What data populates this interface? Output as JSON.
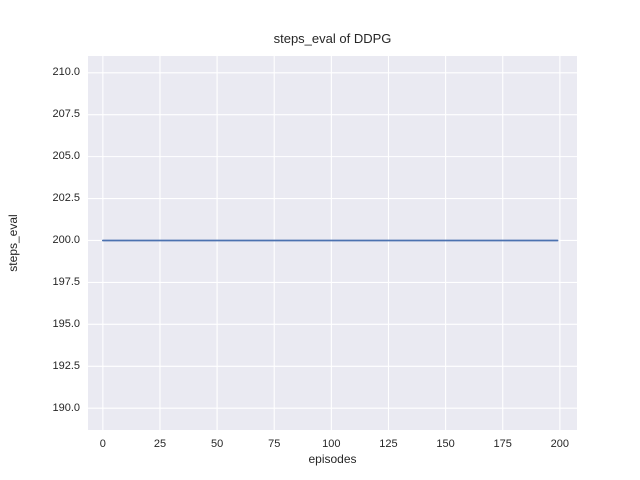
{
  "chart_data": {
    "type": "line",
    "title": "steps_eval of DDPG",
    "xlabel": "episodes",
    "ylabel": "steps_eval",
    "xlim": [
      -6.5,
      207.5
    ],
    "ylim": [
      188.7,
      211.0
    ],
    "grid": true,
    "legend": "none",
    "plot_background": "#EAEAF2",
    "grid_color": "#FFFFFF",
    "xticks": {
      "values": [
        0,
        25,
        50,
        75,
        100,
        125,
        150,
        175,
        200
      ],
      "labels": [
        "0",
        "25",
        "50",
        "75",
        "100",
        "125",
        "150",
        "175",
        "200"
      ]
    },
    "yticks": {
      "values": [
        190.0,
        192.5,
        195.0,
        197.5,
        200.0,
        202.5,
        205.0,
        207.5,
        210.0
      ],
      "labels": [
        "190.0",
        "192.5",
        "195.0",
        "197.5",
        "200.0",
        "202.5",
        "205.0",
        "207.5",
        "210.0"
      ]
    },
    "series": [
      {
        "name": "steps_eval",
        "color": "#4C72B0",
        "line_width": 1.8,
        "x": [
          0,
          199
        ],
        "y": [
          200,
          200
        ],
        "note": "constant value 200 for every episode from 0 to 199"
      }
    ]
  }
}
